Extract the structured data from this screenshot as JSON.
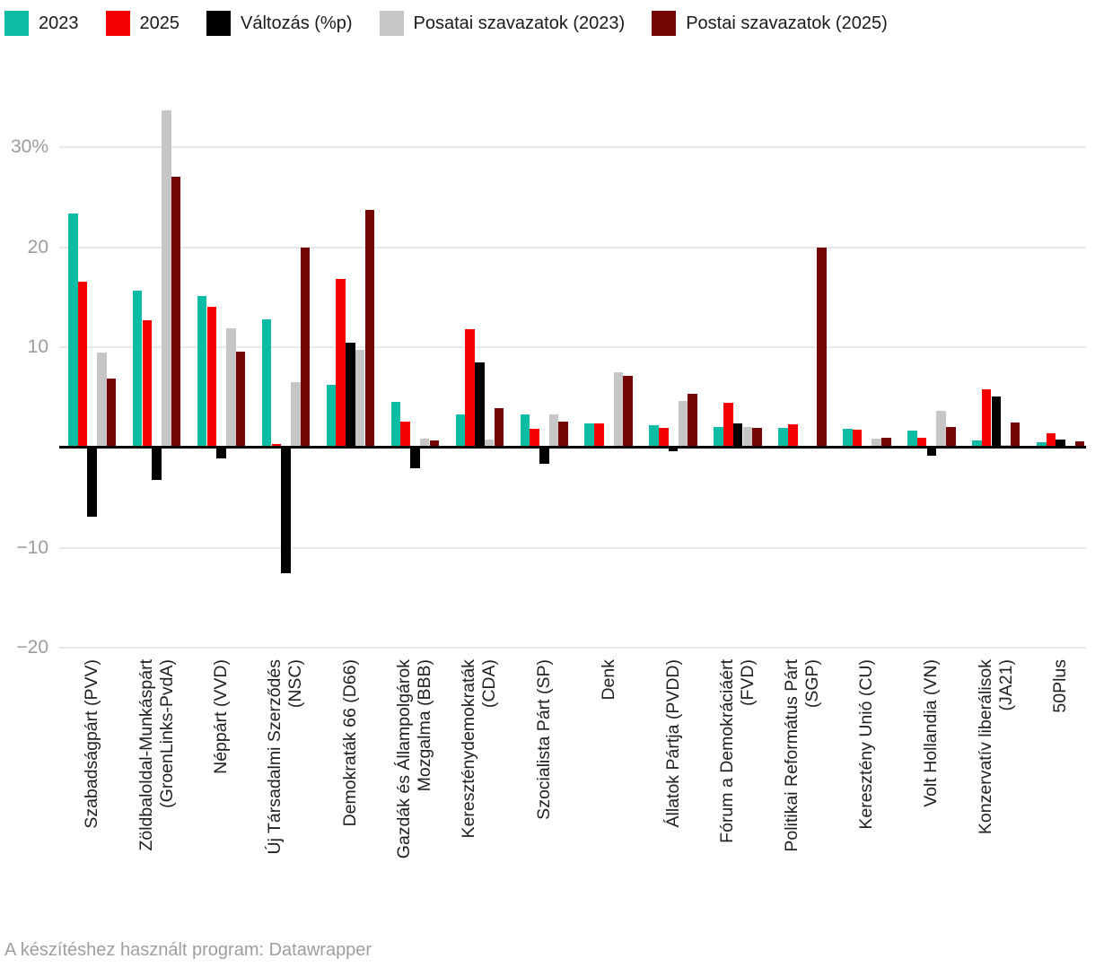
{
  "legend": {
    "items": [
      {
        "label": "2023",
        "color": "#0dbca4"
      },
      {
        "label": "2025",
        "color": "#f40000"
      },
      {
        "label": "Változás (%p)",
        "color": "#000000"
      },
      {
        "label": "Posatai szavazatok (2023)",
        "color": "#c6c6c6"
      },
      {
        "label": "Postai szavazatok (2025)",
        "color": "#750404"
      }
    ]
  },
  "footer": {
    "text": "A készítéshez használt program: Datawrapper"
  },
  "chart_data": {
    "type": "bar",
    "title": "",
    "xlabel": "",
    "ylabel": "",
    "ylim": [
      -20,
      35
    ],
    "grid": true,
    "legend_position": "top",
    "y_ticks": [
      {
        "value": 30,
        "label": "30%"
      },
      {
        "value": 20,
        "label": "20"
      },
      {
        "value": 10,
        "label": "10"
      },
      {
        "value": -10,
        "label": "−10"
      },
      {
        "value": -20,
        "label": "−20"
      }
    ],
    "categories": [
      "Szabadságpárt (PVV)",
      "Zöldbaloldal-Munkáspárt (GroenLinks-PvdA)",
      "Néppárt (VVD)",
      "Új Társadalmi Szerződés (NSC)",
      "Demokraták 66 (D66)",
      "Gazdák és Állampolgárok Mozgalma (BBB)",
      "Kereszténydemokraták (CDA)",
      "Szocialista Párt (SP)",
      "Denk",
      "Állatok Pártja (PVDD)",
      "Fórum a Demokráciáért (FVD)",
      "Politikai Református Párt (SGP)",
      "Keresztény Unió (CU)",
      "Volt Hollandia (VN)",
      "Konzervatív liberálisok (JA21)",
      "50Plus"
    ],
    "category_lines": [
      [
        "Szabadságpárt (PVV)"
      ],
      [
        "Zöldbaloldal-Munkáspárt",
        "(GroenLinks-PvdA)"
      ],
      [
        "Néppárt (VVD)"
      ],
      [
        "Új Társadalmi Szerződés",
        "(NSC)"
      ],
      [
        "Demokraták 66 (D66)"
      ],
      [
        "Gazdák és Állampolgárok",
        "Mozgalma (BBB)"
      ],
      [
        "Kereszténydemokraták",
        "(CDA)"
      ],
      [
        "Szocialista Párt (SP)"
      ],
      [
        "Denk"
      ],
      [
        "Állatok Pártja (PVDD)"
      ],
      [
        "Fórum a Demokráciáért",
        "(FVD)"
      ],
      [
        "Politikai Református Párt",
        "(SGP)"
      ],
      [
        "Keresztény Unió (CU)"
      ],
      [
        "Volt Hollandia (VN)"
      ],
      [
        "Konzervatív liberálisok",
        "(JA21)"
      ],
      [
        "50Plus"
      ]
    ],
    "series": [
      {
        "name": "2023",
        "color": "#0dbca4",
        "values": [
          23.4,
          15.7,
          15.1,
          12.8,
          6.3,
          4.6,
          3.3,
          3.3,
          2.4,
          2.2,
          2.1,
          2.0,
          1.9,
          1.7,
          0.7,
          0.5
        ]
      },
      {
        "name": "2025",
        "color": "#f40000",
        "values": [
          16.6,
          12.7,
          14.1,
          0.4,
          16.8,
          2.6,
          11.8,
          1.9,
          2.4,
          2.0,
          4.5,
          2.3,
          1.8,
          1.0,
          5.8,
          1.4
        ]
      },
      {
        "name": "Változás (%p)",
        "color": "#000000",
        "values": [
          -6.8,
          -3.1,
          -1.0,
          -12.4,
          10.5,
          -2.0,
          8.5,
          -1.5,
          0,
          -0.3,
          2.4,
          0.2,
          0,
          -0.7,
          5.1,
          0.8
        ]
      },
      {
        "name": "Posatai szavazatok (2023)",
        "color": "#c6c6c6",
        "values": [
          9.5,
          33.7,
          11.9,
          6.5,
          9.8,
          0.9,
          0.8,
          3.3,
          7.5,
          4.7,
          2.1,
          0,
          0.9,
          3.7,
          0.3,
          0.2
        ]
      },
      {
        "name": "Postai szavazatok (2025)",
        "color": "#750404",
        "values": [
          6.9,
          27.0,
          9.6,
          20.0,
          23.7,
          0.7,
          3.9,
          2.6,
          7.2,
          5.4,
          2.0,
          20.0,
          1.0,
          2.1,
          2.5,
          0.6
        ]
      }
    ]
  }
}
